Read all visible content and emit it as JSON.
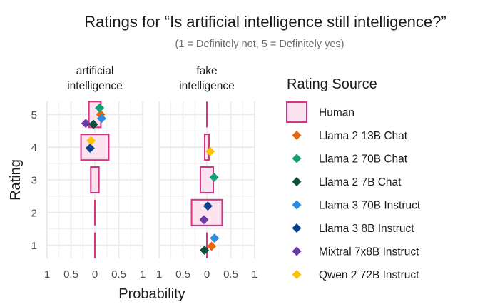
{
  "chart_data": {
    "type": "box-and-point",
    "title": "Ratings for “Is artificial intelligence still intelligence?”",
    "subtitle": "(1 = Definitely not, 5 = Definitely yes)",
    "xlabel": "Probability",
    "ylabel": "Rating",
    "xlim": [
      -1,
      1
    ],
    "ylim": [
      0.6,
      5.4
    ],
    "x_tick_labels": [
      "1",
      "0.5",
      "0",
      "0.5",
      "1"
    ],
    "y_ticks": [
      "1",
      "2",
      "3",
      "4",
      "5"
    ],
    "legend_title": "Rating Source",
    "human_color": "#d63384",
    "human_fill": "#fbe4ef",
    "grid_color": "#ebebeb",
    "legend": [
      {
        "name": "Human",
        "kind": "box",
        "color": "#d63384"
      },
      {
        "name": "Llama 2 13B Chat",
        "kind": "diamond",
        "color": "#e8650a"
      },
      {
        "name": "Llama 2 70B Chat",
        "kind": "diamond",
        "color": "#12a078"
      },
      {
        "name": "Llama 2 7B Chat",
        "kind": "diamond",
        "color": "#0f4f3c"
      },
      {
        "name": "Llama 3 70B Instruct",
        "kind": "diamond",
        "color": "#2b8ce0"
      },
      {
        "name": "Llama 3 8B Instruct",
        "kind": "diamond",
        "color": "#0b3f96"
      },
      {
        "name": "Mixtral 7x8B Instruct",
        "kind": "diamond",
        "color": "#6a3aa6"
      },
      {
        "name": "Qwen 2 72B Instruct",
        "kind": "diamond",
        "color": "#ffc107"
      }
    ],
    "panels": [
      {
        "label": "artificial intelligence",
        "label_lines": [
          "artificial",
          "intelligence"
        ],
        "human": [
          {
            "rating": 1,
            "probability": 0.0
          },
          {
            "rating": 2,
            "probability": 0.0
          },
          {
            "rating": 3,
            "probability": 0.17
          },
          {
            "rating": 4,
            "probability": 0.58
          },
          {
            "rating": 5,
            "probability": 0.25
          }
        ],
        "models": [
          {
            "model": "Llama 2 13B Chat",
            "rating": 5,
            "x": 0.12
          },
          {
            "model": "Llama 2 70B Chat",
            "rating": 5.2,
            "x": 0.1
          },
          {
            "model": "Llama 3 70B Instruct",
            "rating": 4.88,
            "x": 0.14
          },
          {
            "model": "Mixtral 7x8B Instruct",
            "rating": 4.73,
            "x": -0.19
          },
          {
            "model": "Llama 2 7B Chat",
            "rating": 4.7,
            "x": -0.03
          },
          {
            "model": "Qwen 2 72B Instruct",
            "rating": 4.2,
            "x": -0.08
          },
          {
            "model": "Llama 3 8B Instruct",
            "rating": 3.97,
            "x": -0.1
          }
        ]
      },
      {
        "label": "fake intelligence",
        "label_lines": [
          "fake",
          "intelligence"
        ],
        "human": [
          {
            "rating": 1,
            "probability": 0.0
          },
          {
            "rating": 2,
            "probability": 0.64
          },
          {
            "rating": 3,
            "probability": 0.27
          },
          {
            "rating": 4,
            "probability": 0.09
          },
          {
            "rating": 5,
            "probability": 0.0
          }
        ],
        "models": [
          {
            "model": "Llama 2 13B Chat",
            "rating": 0.97,
            "x": 0.1
          },
          {
            "model": "Llama 2 7B Chat",
            "rating": 0.85,
            "x": -0.05
          },
          {
            "model": "Llama 3 70B Instruct",
            "rating": 1.22,
            "x": 0.16
          },
          {
            "model": "Llama 3 8B Instruct",
            "rating": 2.2,
            "x": 0.02
          },
          {
            "model": "Mixtral 7x8B Instruct",
            "rating": 1.78,
            "x": -0.06
          },
          {
            "model": "Llama 2 70B Chat",
            "rating": 3.08,
            "x": 0.15
          },
          {
            "model": "Qwen 2 72B Instruct",
            "rating": 3.87,
            "x": 0.07
          }
        ]
      }
    ]
  }
}
